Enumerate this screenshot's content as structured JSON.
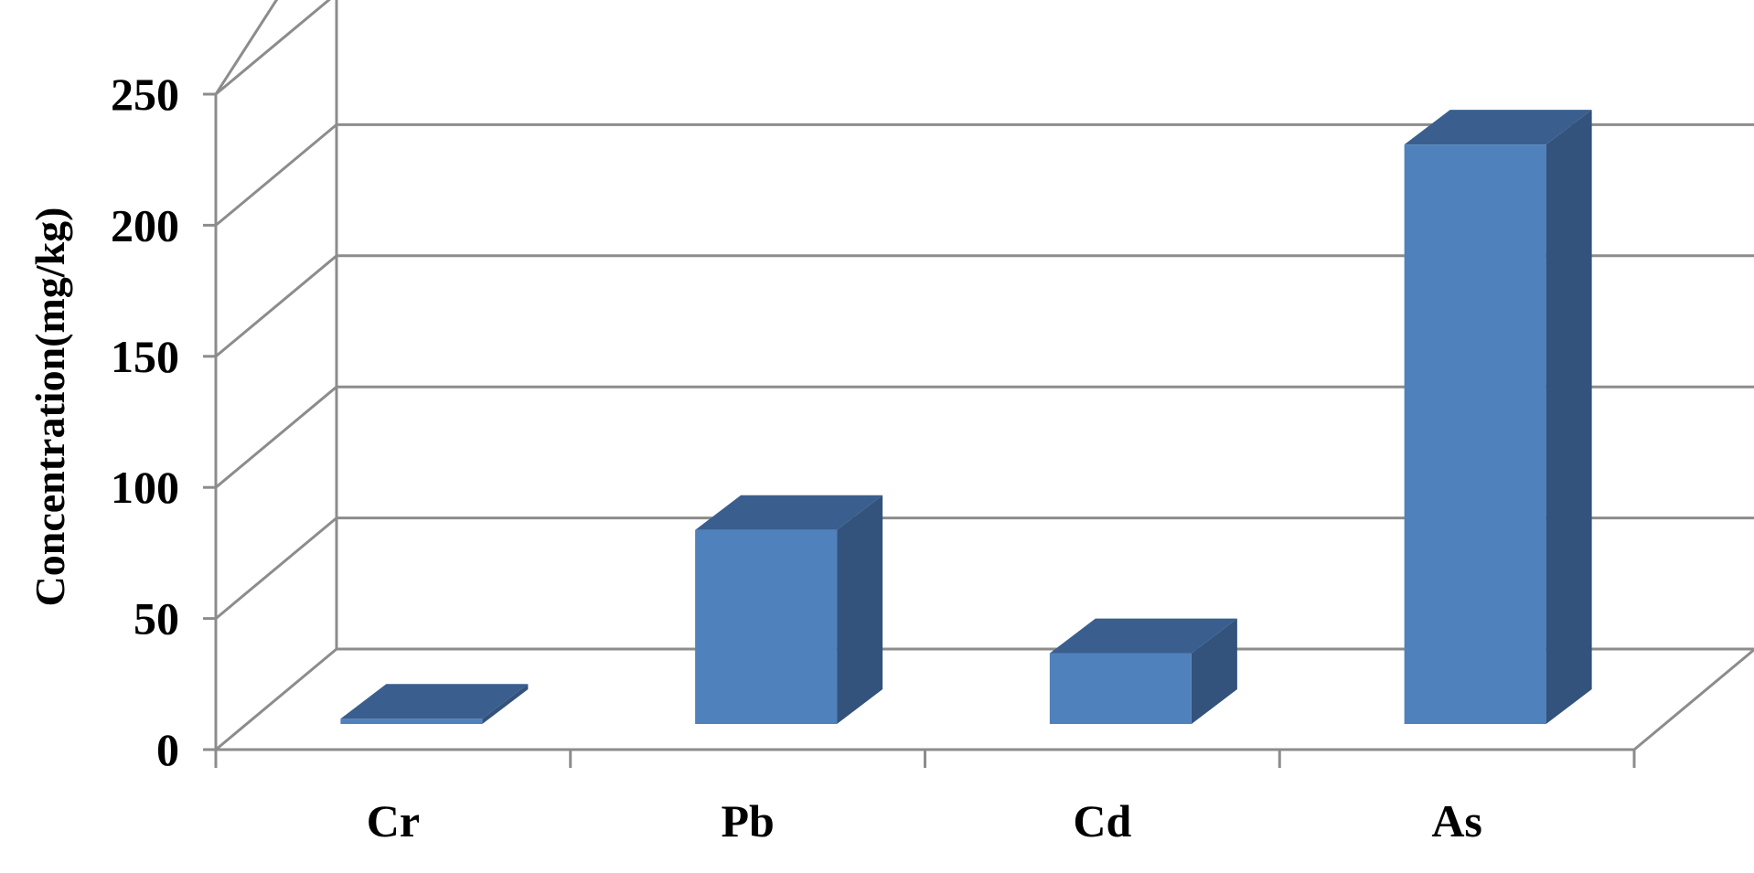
{
  "chart_data": {
    "type": "bar",
    "style": "3d-column",
    "categories": [
      "Cr",
      "Pb",
      "Cd",
      "As"
    ],
    "values": [
      2,
      74,
      27,
      221
    ],
    "xlabel": "",
    "ylabel": "Concentration(mg/kg)",
    "ylim": [
      0,
      250
    ],
    "yticks": [
      "0",
      "50",
      "100",
      "150",
      "200",
      "250"
    ],
    "grid": true,
    "legend": "none",
    "colors": {
      "bar_front": "#4f81bd",
      "bar_top": "#3a5f8e",
      "bar_side": "#33527c",
      "gridline": "#8c8c8c"
    }
  }
}
